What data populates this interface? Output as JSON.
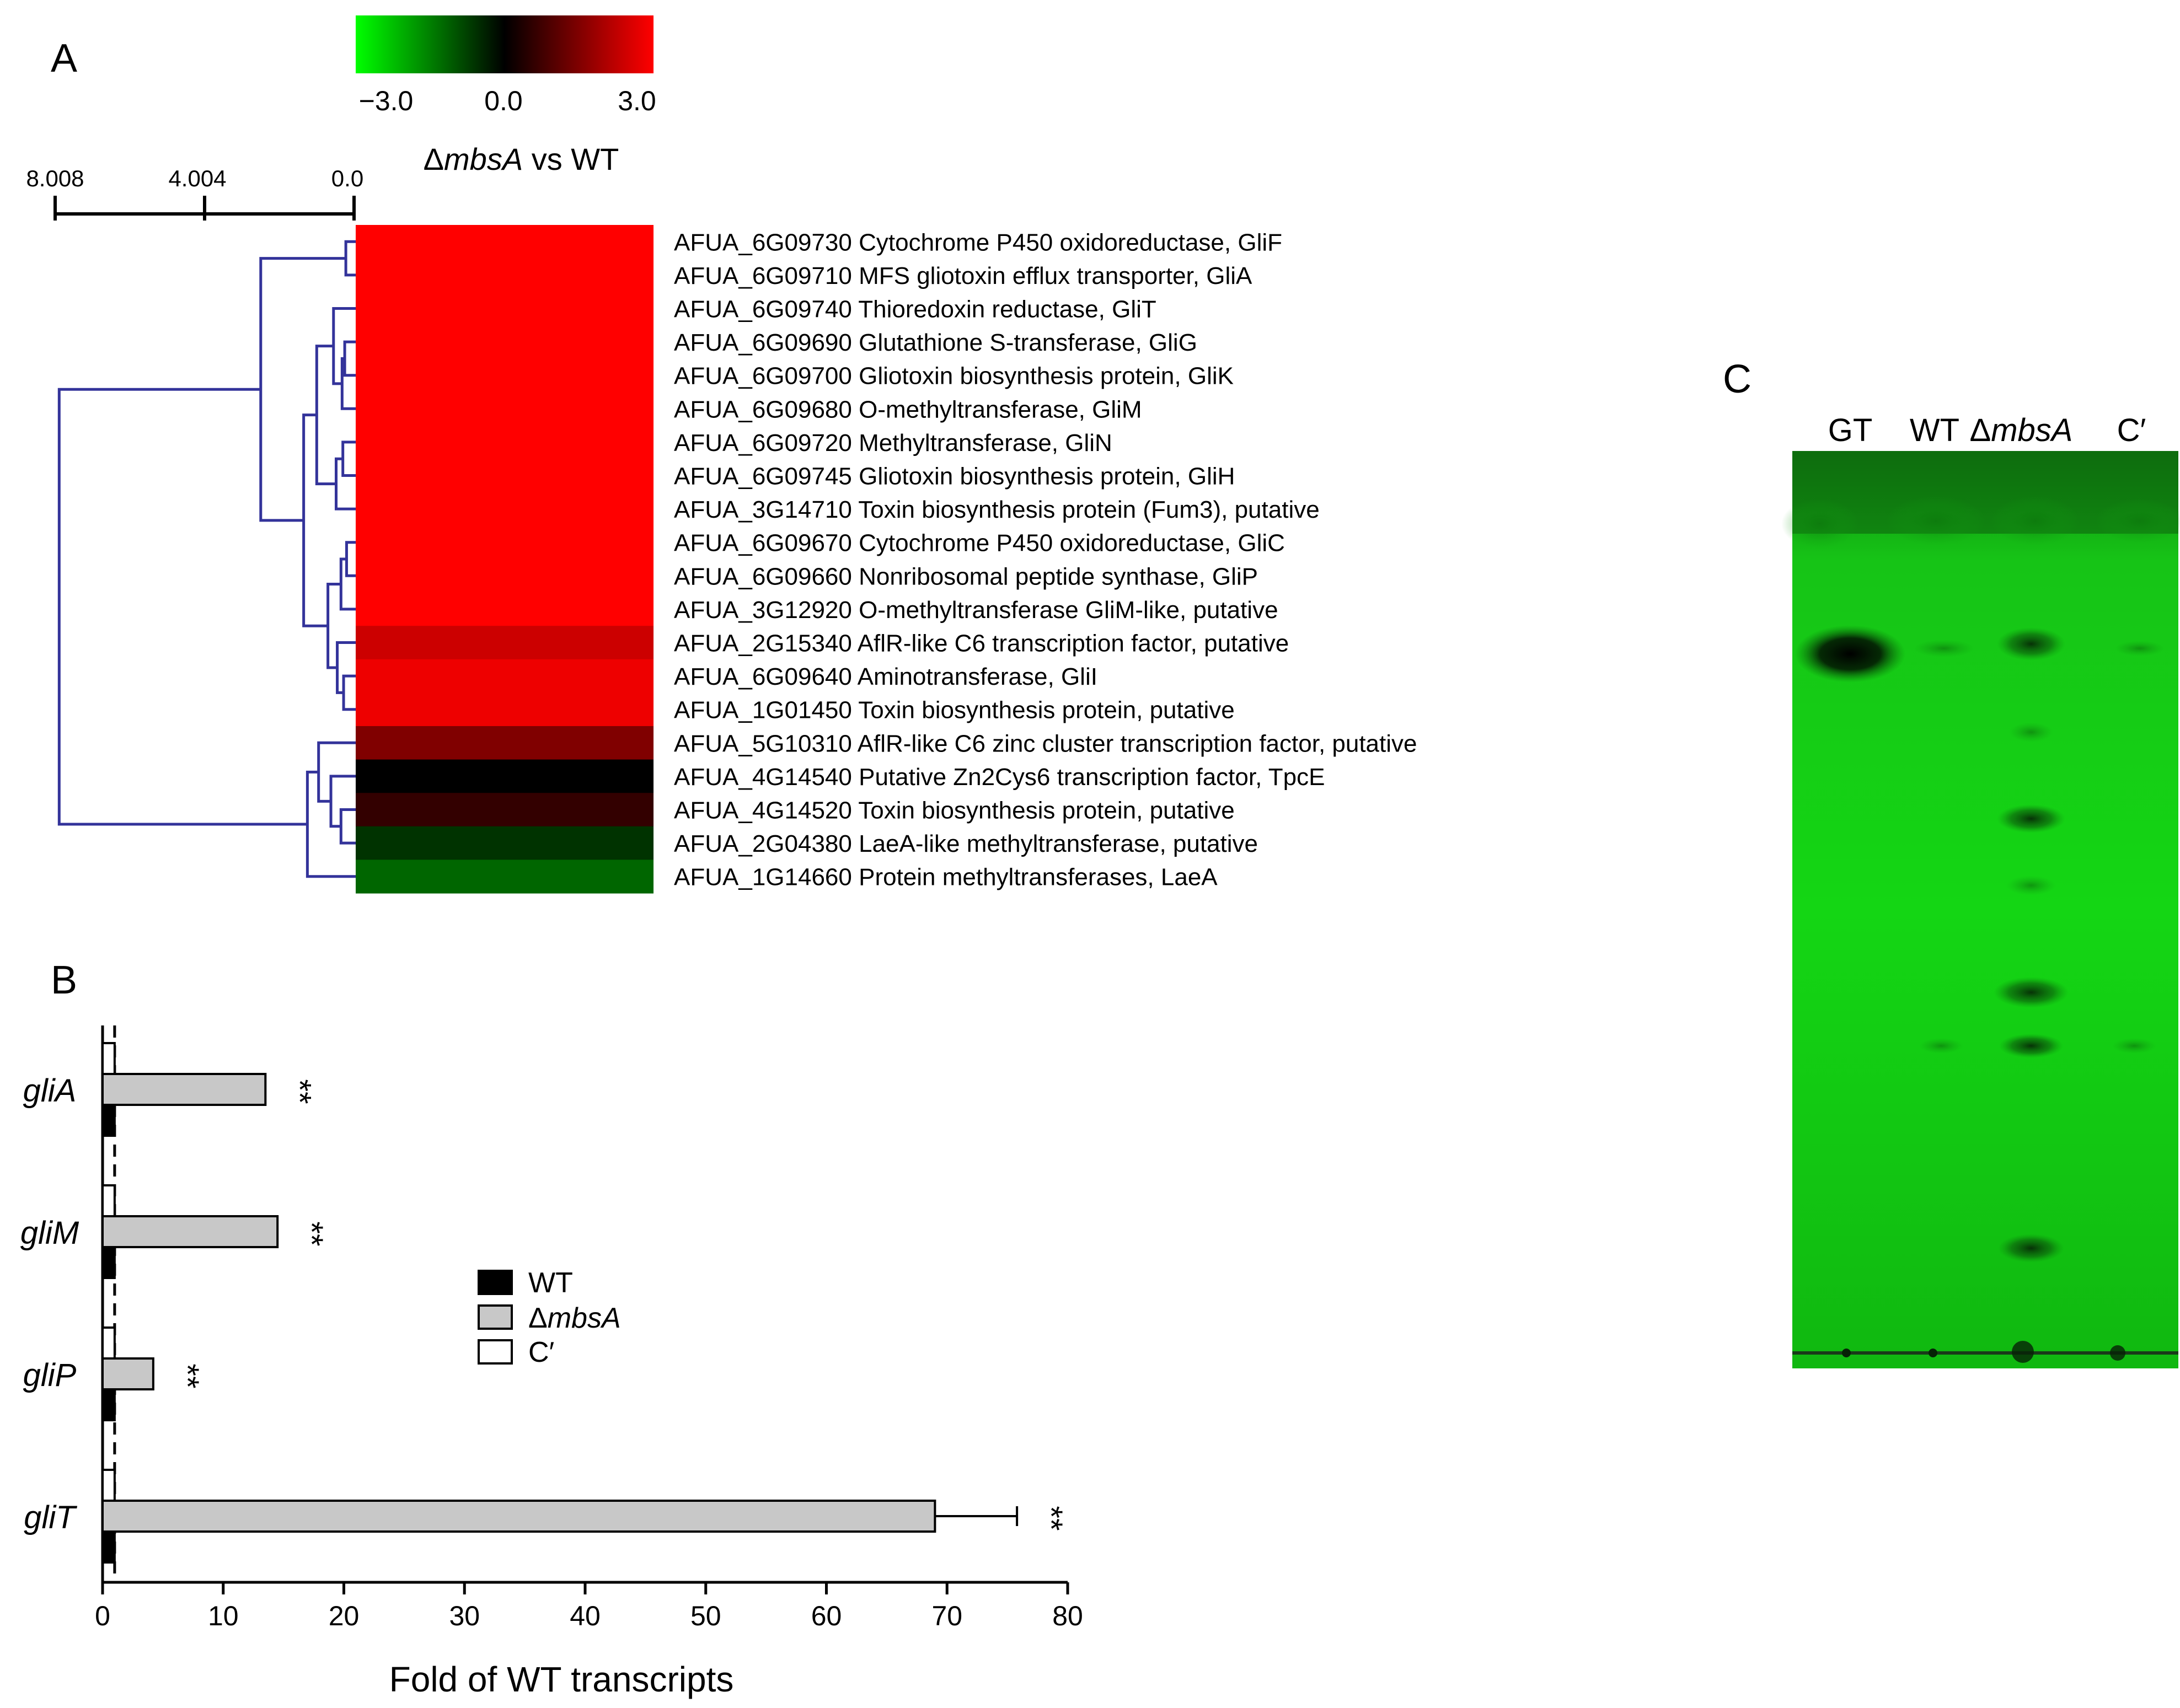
{
  "panels": {
    "a": "A",
    "b": "B",
    "c": "C"
  },
  "colors": {
    "low": "#00ff00",
    "mid": "#000000",
    "high": "#ff0000",
    "dendro": "#33339a",
    "tlc_bg": "#12d012",
    "bar_mbsA": "#c8c8c8"
  },
  "colorbar": {
    "ticks": [
      "−3.0",
      "0.0",
      "3.0"
    ],
    "values": [
      -3.0,
      0.0,
      3.0
    ],
    "label_prefix": "Δ",
    "label_italic": "mbsA",
    "label_suffix": " vs WT"
  },
  "dendro_scale": {
    "labels": [
      "8.008",
      "4.004",
      "0.0"
    ],
    "values": [
      8.008,
      4.004,
      0.0
    ]
  },
  "chart_data": [
    {
      "type": "heatmap",
      "title": "ΔmbsA vs WT",
      "scale": [
        -3.0,
        3.0
      ],
      "rows": [
        {
          "id": "AFUA_6G09730",
          "desc": "Cytochrome P450 oxidoreductase, GliF",
          "value": 3.0
        },
        {
          "id": "AFUA_6G09710",
          "desc": "MFS gliotoxin efflux transporter, GliA",
          "value": 3.0
        },
        {
          "id": "AFUA_6G09740",
          "desc": "Thioredoxin reductase, GliT",
          "value": 3.0
        },
        {
          "id": "AFUA_6G09690",
          "desc": "Glutathione S-transferase, GliG",
          "value": 3.0
        },
        {
          "id": "AFUA_6G09700",
          "desc": "Gliotoxin biosynthesis protein, GliK",
          "value": 3.0
        },
        {
          "id": "AFUA_6G09680",
          "desc": "O-methyltransferase, GliM",
          "value": 3.0
        },
        {
          "id": "AFUA_6G09720",
          "desc": "Methyltransferase, GliN",
          "value": 3.0
        },
        {
          "id": "AFUA_6G09745",
          "desc": "Gliotoxin biosynthesis protein, GliH",
          "value": 3.0
        },
        {
          "id": "AFUA_3G14710",
          "desc": "Toxin biosynthesis protein (Fum3), putative",
          "value": 3.0
        },
        {
          "id": "AFUA_6G09670",
          "desc": "Cytochrome P450 oxidoreductase, GliC",
          "value": 3.0
        },
        {
          "id": "AFUA_6G09660",
          "desc": "Nonribosomal peptide synthase, GliP",
          "value": 3.0
        },
        {
          "id": "AFUA_3G12920",
          "desc": "O-methyltransferase GliM-like, putative",
          "value": 3.0
        },
        {
          "id": "AFUA_2G15340",
          "desc": "AflR-like C6 transcription factor, putative",
          "value": 2.4
        },
        {
          "id": "AFUA_6G09640",
          "desc": "Aminotransferase, GliI",
          "value": 2.8
        },
        {
          "id": "AFUA_1G01450",
          "desc": "Toxin biosynthesis protein, putative",
          "value": 2.8
        },
        {
          "id": "AFUA_5G10310",
          "desc": "AflR-like C6 zinc cluster transcription factor, putative",
          "value": 1.5
        },
        {
          "id": "AFUA_4G14540",
          "desc": "Putative Zn2Cys6 transcription factor, TpcE",
          "value": 0.0
        },
        {
          "id": "AFUA_4G14520",
          "desc": "Toxin biosynthesis protein, putative",
          "value": 0.6
        },
        {
          "id": "AFUA_2G04380",
          "desc": "LaeA-like methyltransferase, putative",
          "value": -0.6
        },
        {
          "id": "AFUA_1G14660",
          "desc": "Protein methyltransferases, LaeA",
          "value": -1.2
        }
      ]
    },
    {
      "type": "bar",
      "orientation": "horizontal",
      "categories": [
        "gliA",
        "gliM",
        "gliP",
        "gliT"
      ],
      "series": [
        {
          "name": "WT",
          "values": [
            1,
            1,
            1,
            1
          ]
        },
        {
          "name": "ΔmbsA",
          "values": [
            13.5,
            14.5,
            4.2,
            69
          ],
          "errors": [
            0,
            0,
            0,
            6.8
          ]
        },
        {
          "name": "C′",
          "values": [
            1,
            1,
            1,
            1
          ]
        }
      ],
      "significance": [
        "**",
        "**",
        "**",
        "**"
      ],
      "xlabel": "Fold of WT transcripts",
      "xlim": [
        0,
        80
      ],
      "xticks": [
        0,
        10,
        20,
        30,
        40,
        50,
        60,
        70,
        80
      ],
      "reference_line": 1,
      "legend_position": "center-right",
      "legend": [
        "WT",
        "ΔmbsA",
        "C′"
      ]
    }
  ],
  "tlc": {
    "lanes": [
      "GT",
      "WT",
      "ΔmbsA",
      "C′"
    ]
  }
}
